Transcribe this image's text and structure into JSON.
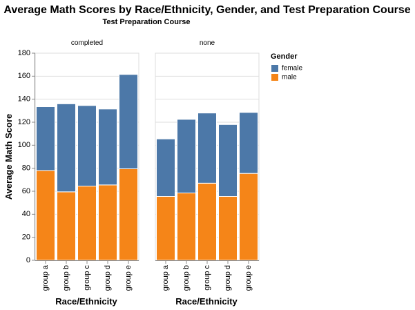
{
  "chart_data": {
    "type": "bar",
    "stacked": true,
    "title": "Average Math Scores by Race/Ethnicity, Gender, and Test Preparation Course",
    "facet_title": "Test Preparation Course",
    "xlabel": "Race/Ethnicity",
    "ylabel": "Average Math Score",
    "ylim": [
      0,
      180
    ],
    "yticks": [
      0,
      20,
      40,
      60,
      80,
      100,
      120,
      140,
      160,
      180
    ],
    "categories": [
      "group a",
      "group b",
      "group c",
      "group d",
      "group e"
    ],
    "grid": true,
    "legend": {
      "title": "Gender",
      "position": "right",
      "entries": [
        {
          "name": "female",
          "color": "#4c78a8"
        },
        {
          "name": "male",
          "color": "#f58518"
        }
      ]
    },
    "facets": [
      {
        "name": "completed",
        "series": [
          {
            "name": "male",
            "values": [
              78.0,
              59.5,
              64.5,
              65.5,
              79.5
            ]
          },
          {
            "name": "female",
            "values": [
              55.5,
              76.5,
              70.0,
              66.0,
              82.0
            ]
          }
        ]
      },
      {
        "name": "none",
        "series": [
          {
            "name": "male",
            "values": [
              55.5,
              58.5,
              67.0,
              55.5,
              75.5
            ]
          },
          {
            "name": "female",
            "values": [
              50.0,
              64.0,
              61.0,
              62.5,
              53.0
            ]
          }
        ]
      }
    ]
  }
}
